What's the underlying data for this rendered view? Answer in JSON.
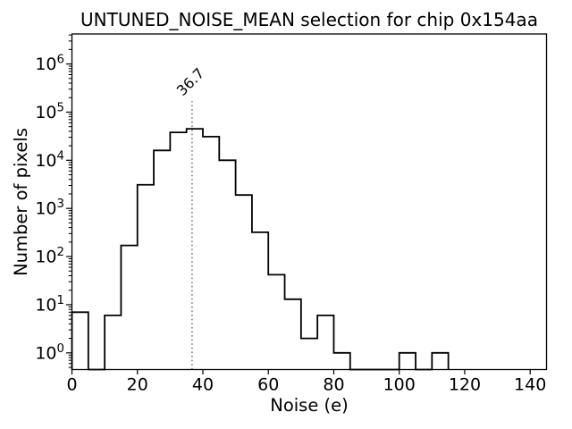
{
  "window": {
    "background": "#ffffff"
  },
  "chart_data": {
    "type": "histogram",
    "title": "UNTUNED_NOISE_MEAN selection for chip 0x154aa",
    "xlabel": "Noise (e)",
    "ylabel": "Number of pixels",
    "x_scale": "linear",
    "y_scale": "log",
    "xlim": [
      0,
      145
    ],
    "ylim": [
      0.45,
      4200000
    ],
    "xticks": [
      0,
      20,
      40,
      60,
      80,
      100,
      120,
      140
    ],
    "ytick_exponents": [
      0,
      1,
      2,
      3,
      4,
      5,
      6
    ],
    "grid": false,
    "legend": null,
    "line_color": "#000000",
    "bin_edges": [
      0,
      5,
      10,
      15,
      20,
      25,
      30,
      35,
      40,
      45,
      50,
      55,
      60,
      65,
      70,
      75,
      80,
      85,
      90,
      95,
      100,
      105,
      110,
      115
    ],
    "counts": [
      7,
      0,
      6,
      170,
      3100,
      16000,
      38000,
      45000,
      31000,
      10000,
      1900,
      320,
      42,
      13,
      2,
      6,
      1,
      0,
      0,
      0,
      1,
      0,
      1
    ],
    "annotation_vline": {
      "x": 36.7,
      "label": "36.7",
      "color": "#888888",
      "linestyle": "dotted",
      "ymax_fraction": 0.8
    }
  }
}
